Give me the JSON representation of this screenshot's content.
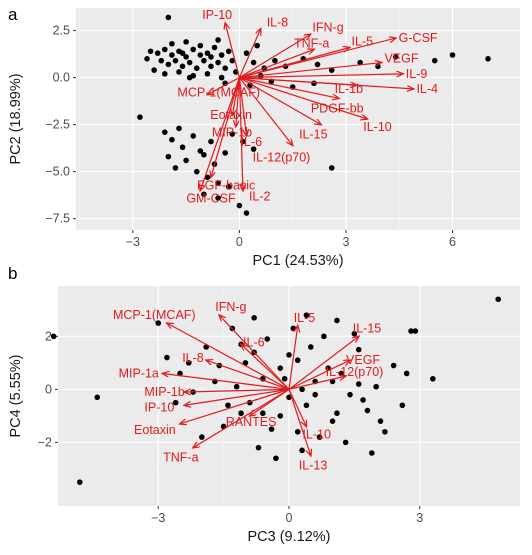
{
  "chart_data": [
    {
      "type": "scatter",
      "panel": "a",
      "xlabel": "PC1 (24.53%)",
      "ylabel": "PC2 (18.99%)",
      "xlim": [
        -4.6,
        7.9
      ],
      "ylim": [
        -8.1,
        3.7
      ],
      "xticks": [
        -3,
        0,
        3,
        6
      ],
      "yticks": [
        -7.5,
        -5.0,
        -2.5,
        0.0,
        2.5
      ],
      "ytick_labels": [
        "−7.5",
        "−5.0",
        "−2.5",
        "0.0",
        "2.5"
      ],
      "xtick_labels": [
        "−3",
        "0",
        "3",
        "6"
      ],
      "points": [
        [
          -2.0,
          3.2
        ],
        [
          -2.5,
          1.4
        ],
        [
          -2.3,
          1.3
        ],
        [
          -2.1,
          1.5
        ],
        [
          -1.9,
          1.2
        ],
        [
          -1.7,
          1.4
        ],
        [
          -1.5,
          1.1
        ],
        [
          -1.3,
          1.5
        ],
        [
          -1.1,
          1.2
        ],
        [
          -0.9,
          1.3
        ],
        [
          -0.7,
          1.6
        ],
        [
          -0.5,
          1.2
        ],
        [
          -0.3,
          1.4
        ],
        [
          -2.2,
          0.9
        ],
        [
          -2.0,
          0.7
        ],
        [
          -1.8,
          0.9
        ],
        [
          -1.6,
          0.6
        ],
        [
          -1.4,
          0.8
        ],
        [
          -1.2,
          0.5
        ],
        [
          -1.0,
          0.9
        ],
        [
          -0.8,
          0.6
        ],
        [
          -0.6,
          0.8
        ],
        [
          -0.4,
          0.5
        ],
        [
          -0.2,
          0.9
        ],
        [
          -2.4,
          0.4
        ],
        [
          -2.1,
          0.2
        ],
        [
          -1.7,
          0.3
        ],
        [
          -1.3,
          0.1
        ],
        [
          -0.9,
          0.2
        ],
        [
          -0.5,
          0.0
        ],
        [
          -1.9,
          1.8
        ],
        [
          -1.5,
          1.9
        ],
        [
          -1.1,
          1.7
        ],
        [
          -0.6,
          2.0
        ],
        [
          0.2,
          1.3
        ],
        [
          0.4,
          0.8
        ],
        [
          0.7,
          0.5
        ],
        [
          0.5,
          1.7
        ],
        [
          1.0,
          0.9
        ],
        [
          1.3,
          0.6
        ],
        [
          1.8,
          1.0
        ],
        [
          2.2,
          0.7
        ],
        [
          2.6,
          0.4
        ],
        [
          3.4,
          0.8
        ],
        [
          3.9,
          0.6
        ],
        [
          4.4,
          1.1
        ],
        [
          5.5,
          0.9
        ],
        [
          7.0,
          1.0
        ],
        [
          6.0,
          1.2
        ],
        [
          -0.4,
          -0.3
        ],
        [
          0.3,
          -0.4
        ],
        [
          0.9,
          -0.2
        ],
        [
          1.5,
          -0.5
        ],
        [
          2.1,
          -0.3
        ],
        [
          -2.1,
          -2.9
        ],
        [
          -1.9,
          -3.3
        ],
        [
          -1.7,
          -2.7
        ],
        [
          -1.6,
          -3.7
        ],
        [
          -1.3,
          -3.1
        ],
        [
          -1.1,
          -3.9
        ],
        [
          -0.8,
          -3.4
        ],
        [
          -2.0,
          -4.2
        ],
        [
          -1.5,
          -4.4
        ],
        [
          -1.0,
          -4.1
        ],
        [
          -0.7,
          -4.6
        ],
        [
          -0.4,
          -4.0
        ],
        [
          -1.8,
          -4.8
        ],
        [
          -1.2,
          -5.0
        ],
        [
          -0.9,
          -5.3
        ],
        [
          -0.6,
          -5.6
        ],
        [
          -0.3,
          -5.8
        ],
        [
          -0.2,
          -3.0
        ],
        [
          0.1,
          -3.4
        ],
        [
          0.4,
          -3.8
        ],
        [
          -1.0,
          -6.2
        ],
        [
          -0.6,
          -6.4
        ],
        [
          0.0,
          -6.8
        ],
        [
          0.2,
          -7.2
        ],
        [
          2.6,
          -4.8
        ],
        [
          -2.8,
          -2.1
        ],
        [
          -1.4,
          0.0
        ],
        [
          -0.1,
          0.3
        ],
        [
          0.6,
          0.1
        ],
        [
          -2.6,
          1.0
        ],
        [
          -1.6,
          1.3
        ],
        [
          -0.8,
          1.1
        ]
      ],
      "vectors": [
        {
          "label": "IP-10",
          "x": -0.4,
          "y": 2.9
        },
        {
          "label": "IL-8",
          "x": 0.6,
          "y": 2.6
        },
        {
          "label": "IFN-g",
          "x": 2.0,
          "y": 2.3
        },
        {
          "label": "TNF-a",
          "x": 2.1,
          "y": 1.5
        },
        {
          "label": "IL-5",
          "x": 3.1,
          "y": 1.6
        },
        {
          "label": "G-CSF",
          "x": 4.4,
          "y": 2.1
        },
        {
          "label": "VEGF",
          "x": 4.0,
          "y": 0.8
        },
        {
          "label": "IL-9",
          "x": 4.6,
          "y": 0.2
        },
        {
          "label": "IL-1b",
          "x": 3.3,
          "y": -0.4
        },
        {
          "label": "IL-4",
          "x": 4.9,
          "y": -0.6
        },
        {
          "label": "PDGF-bb",
          "x": 2.8,
          "y": -1.1
        },
        {
          "label": "IL-10",
          "x": 3.6,
          "y": -2.2
        },
        {
          "label": "IL-15",
          "x": 2.3,
          "y": -2.5
        },
        {
          "label": "IL-12(p70)",
          "x": 1.5,
          "y": -3.6
        },
        {
          "label": "MCP-1(MCAF)",
          "x": -0.9,
          "y": -0.9
        },
        {
          "label": "Eotaxin",
          "x": -0.2,
          "y": -2.0
        },
        {
          "label": "MIP-1b",
          "x": -0.1,
          "y": -2.6
        },
        {
          "label": "IL-6",
          "x": 0.2,
          "y": -3.1
        },
        {
          "label": "FGF-basic",
          "x": -0.8,
          "y": -5.3
        },
        {
          "label": "GM-CSF",
          "x": -1.1,
          "y": -6.0
        },
        {
          "label": "IL-2",
          "x": 0.1,
          "y": -6.0
        }
      ]
    },
    {
      "type": "scatter",
      "panel": "b",
      "xlabel": "PC3 (9.12%)",
      "ylabel": "PC4 (5.55%)",
      "xlim": [
        -5.3,
        5.3
      ],
      "ylim": [
        -4.4,
        3.9
      ],
      "xticks": [
        -3,
        0,
        3
      ],
      "yticks": [
        -2,
        0,
        2
      ],
      "xtick_labels": [
        "−3",
        "0",
        "3"
      ],
      "ytick_labels": [
        "−2",
        "0",
        "2"
      ],
      "points": [
        [
          -5.4,
          2.0
        ],
        [
          -4.4,
          -0.3
        ],
        [
          -4.8,
          -3.5
        ],
        [
          4.8,
          3.4
        ],
        [
          3.3,
          0.4
        ],
        [
          2.8,
          2.2
        ],
        [
          2.9,
          2.2
        ],
        [
          -3.0,
          2.5
        ],
        [
          -2.8,
          1.2
        ],
        [
          -2.5,
          0.6
        ],
        [
          -2.2,
          -0.1
        ],
        [
          -1.9,
          1.6
        ],
        [
          -1.6,
          0.9
        ],
        [
          -1.3,
          2.3
        ],
        [
          -1.1,
          -0.9
        ],
        [
          -0.8,
          1.4
        ],
        [
          -0.6,
          0.4
        ],
        [
          -0.4,
          -1.5
        ],
        [
          -0.2,
          0.8
        ],
        [
          0.0,
          -0.3
        ],
        [
          0.2,
          1.1
        ],
        [
          0.4,
          -0.6
        ],
        [
          0.6,
          0.3
        ],
        [
          0.8,
          2.0
        ],
        [
          1.0,
          -1.2
        ],
        [
          1.2,
          0.6
        ],
        [
          1.4,
          -0.2
        ],
        [
          1.6,
          1.5
        ],
        [
          1.8,
          -0.8
        ],
        [
          2.0,
          0.1
        ],
        [
          2.2,
          -1.6
        ],
        [
          2.4,
          0.9
        ],
        [
          -0.7,
          -2.2
        ],
        [
          -0.3,
          -2.6
        ],
        [
          0.3,
          -2.3
        ],
        [
          0.7,
          -1.8
        ],
        [
          -1.5,
          -1.4
        ],
        [
          -2.0,
          -1.8
        ],
        [
          -1.2,
          0.1
        ],
        [
          -0.9,
          -0.5
        ],
        [
          -0.5,
          1.9
        ],
        [
          0.1,
          2.3
        ],
        [
          0.5,
          1.6
        ],
        [
          1.1,
          2.6
        ],
        [
          1.5,
          2.1
        ],
        [
          1.9,
          -2.4
        ],
        [
          1.7,
          -0.4
        ],
        [
          2.6,
          -0.6
        ],
        [
          -0.1,
          0.4
        ],
        [
          0.3,
          0.0
        ],
        [
          -1.7,
          0.3
        ],
        [
          -2.3,
          1.0
        ],
        [
          -0.6,
          -0.9
        ],
        [
          0.9,
          0.8
        ],
        [
          1.3,
          -2.0
        ],
        [
          2.1,
          -1.2
        ],
        [
          -1.0,
          1.0
        ],
        [
          0.0,
          1.3
        ],
        [
          0.6,
          -0.2
        ],
        [
          -0.2,
          -1.0
        ],
        [
          1.0,
          0.3
        ],
        [
          -1.4,
          -0.6
        ],
        [
          2.7,
          0.6
        ],
        [
          0.4,
          2.8
        ],
        [
          -2.6,
          -0.5
        ],
        [
          1.6,
          0.2
        ],
        [
          -0.8,
          2.7
        ],
        [
          0.2,
          -1.6
        ],
        [
          1.1,
          -0.9
        ],
        [
          -1.1,
          1.7
        ]
      ],
      "vectors": [
        {
          "label": "IFN-g",
          "x": -1.6,
          "y": 2.8
        },
        {
          "label": "MCP-1(MCAF)",
          "x": -2.8,
          "y": 2.5
        },
        {
          "label": "IL-6",
          "x": -1.1,
          "y": 1.7
        },
        {
          "label": "IL-5",
          "x": 0.2,
          "y": 2.4
        },
        {
          "label": "IL-15",
          "x": 1.6,
          "y": 2.0
        },
        {
          "label": "IL-8",
          "x": -1.9,
          "y": 1.1
        },
        {
          "label": "MIP-1a",
          "x": -2.9,
          "y": 0.6
        },
        {
          "label": "VEGF",
          "x": 1.4,
          "y": 1.1
        },
        {
          "label": "IL-12(p70)",
          "x": 1.3,
          "y": 0.5
        },
        {
          "label": "MIP-1b",
          "x": -2.4,
          "y": -0.1
        },
        {
          "label": "IP-10",
          "x": -2.4,
          "y": -0.6
        },
        {
          "label": "Eotaxin",
          "x": -2.5,
          "y": -1.3
        },
        {
          "label": "RANTES",
          "x": -0.9,
          "y": -1.0
        },
        {
          "label": "TNF-a",
          "x": -2.2,
          "y": -2.2
        },
        {
          "label": "IL-10",
          "x": 0.4,
          "y": -1.4
        },
        {
          "label": "IL-13",
          "x": 0.5,
          "y": -2.5
        }
      ]
    }
  ],
  "panel_tags": {
    "a": "a",
    "b": "b"
  },
  "colors": {
    "panel_bg": "#ebebeb",
    "points": "#000000",
    "vectors": "#e31a1c"
  }
}
